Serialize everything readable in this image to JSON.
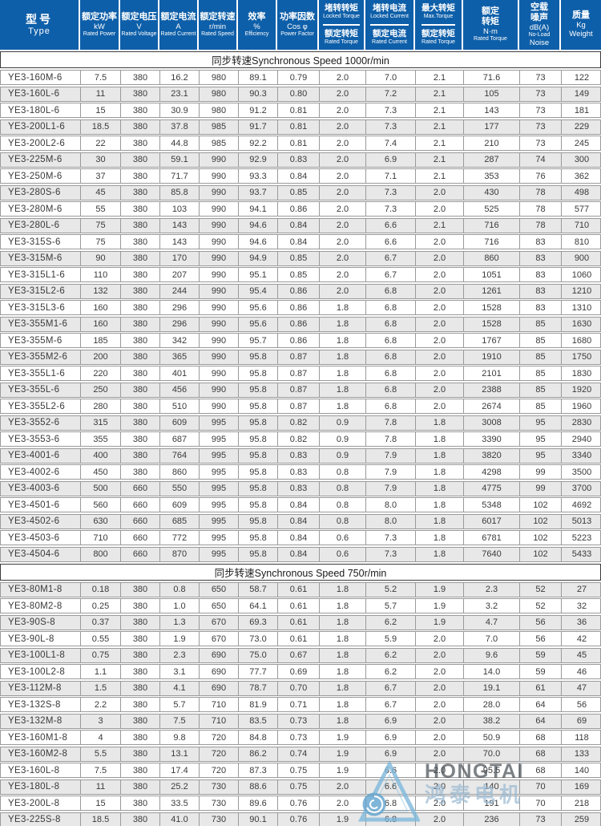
{
  "table": {
    "header": {
      "cols": [
        {
          "key": "type",
          "lines": [
            "型号",
            "Type"
          ]
        },
        {
          "key": "rated-power",
          "lines": [
            "额定功率",
            "kW",
            "Rated Power"
          ]
        },
        {
          "key": "rated-voltage",
          "lines": [
            "额定电压",
            "V",
            "Rated Voltage"
          ]
        },
        {
          "key": "rated-current",
          "lines": [
            "额定电流",
            "A",
            "Rated Current"
          ]
        },
        {
          "key": "rated-speed",
          "lines": [
            "额定转速",
            "r/min",
            "Rated Speed"
          ]
        },
        {
          "key": "efficiency",
          "lines": [
            "效率",
            "%",
            "Efficiency"
          ]
        },
        {
          "key": "power-factor",
          "lines": [
            "功率因数",
            "Cos φ",
            "Power Factor"
          ]
        },
        {
          "key": "locked-torque-ratio",
          "top": [
            "堵转转矩",
            "Locked Torque"
          ],
          "bottom": [
            "额定转矩",
            "Rated Torque"
          ]
        },
        {
          "key": "locked-current-ratio",
          "top": [
            "堵转电流",
            "Locked Current"
          ],
          "bottom": [
            "额定电流",
            "Rated Current"
          ]
        },
        {
          "key": "max-torque-ratio",
          "top": [
            "最大转矩",
            "Max.Torque"
          ],
          "bottom": [
            "额定转矩",
            "Rated Torque"
          ]
        },
        {
          "key": "rated-torque",
          "lines": [
            "额定",
            "转矩",
            "N·m",
            "Rated Torque"
          ]
        },
        {
          "key": "no-load-noise",
          "lines": [
            "空载",
            "噪声",
            "dB(A)",
            "No-Load",
            "Noise"
          ]
        },
        {
          "key": "weight",
          "lines": [
            "质量",
            "Kg",
            "Weight"
          ]
        }
      ]
    },
    "sections": [
      {
        "title": "同步转速Synchronous Speed  1000r/min",
        "rows": [
          [
            "YE3-160M-6",
            "7.5",
            "380",
            "16.2",
            "980",
            "89.1",
            "0.79",
            "2.0",
            "7.0",
            "2.1",
            "71.6",
            "73",
            "122"
          ],
          [
            "YE3-160L-6",
            "11",
            "380",
            "23.1",
            "980",
            "90.3",
            "0.80",
            "2.0",
            "7.2",
            "2.1",
            "105",
            "73",
            "149"
          ],
          [
            "YE3-180L-6",
            "15",
            "380",
            "30.9",
            "980",
            "91.2",
            "0.81",
            "2.0",
            "7.3",
            "2.1",
            "143",
            "73",
            "181"
          ],
          [
            "YE3-200L1-6",
            "18.5",
            "380",
            "37.8",
            "985",
            "91.7",
            "0.81",
            "2.0",
            "7.3",
            "2.1",
            "177",
            "73",
            "229"
          ],
          [
            "YE3-200L2-6",
            "22",
            "380",
            "44.8",
            "985",
            "92.2",
            "0.81",
            "2.0",
            "7.4",
            "2.1",
            "210",
            "73",
            "245"
          ],
          [
            "YE3-225M-6",
            "30",
            "380",
            "59.1",
            "990",
            "92.9",
            "0.83",
            "2.0",
            "6.9",
            "2.1",
            "287",
            "74",
            "300"
          ],
          [
            "YE3-250M-6",
            "37",
            "380",
            "71.7",
            "990",
            "93.3",
            "0.84",
            "2.0",
            "7.1",
            "2.1",
            "353",
            "76",
            "362"
          ],
          [
            "YE3-280S-6",
            "45",
            "380",
            "85.8",
            "990",
            "93.7",
            "0.85",
            "2.0",
            "7.3",
            "2.0",
            "430",
            "78",
            "498"
          ],
          [
            "YE3-280M-6",
            "55",
            "380",
            "103",
            "990",
            "94.1",
            "0.86",
            "2.0",
            "7.3",
            "2.0",
            "525",
            "78",
            "577"
          ],
          [
            "YE3-280L-6",
            "75",
            "380",
            "143",
            "990",
            "94.6",
            "0.84",
            "2.0",
            "6.6",
            "2.1",
            "716",
            "78",
            "710"
          ],
          [
            "YE3-315S-6",
            "75",
            "380",
            "143",
            "990",
            "94.6",
            "0.84",
            "2.0",
            "6.6",
            "2.0",
            "716",
            "83",
            "810"
          ],
          [
            "YE3-315M-6",
            "90",
            "380",
            "170",
            "990",
            "94.9",
            "0.85",
            "2.0",
            "6.7",
            "2.0",
            "860",
            "83",
            "900"
          ],
          [
            "YE3-315L1-6",
            "110",
            "380",
            "207",
            "990",
            "95.1",
            "0.85",
            "2.0",
            "6.7",
            "2.0",
            "1051",
            "83",
            "1060"
          ],
          [
            "YE3-315L2-6",
            "132",
            "380",
            "244",
            "990",
            "95.4",
            "0.86",
            "2.0",
            "6.8",
            "2.0",
            "1261",
            "83",
            "1210"
          ],
          [
            "YE3-315L3-6",
            "160",
            "380",
            "296",
            "990",
            "95.6",
            "0.86",
            "1.8",
            "6.8",
            "2.0",
            "1528",
            "83",
            "1310"
          ],
          [
            "YE3-355M1-6",
            "160",
            "380",
            "296",
            "990",
            "95.6",
            "0.86",
            "1.8",
            "6.8",
            "2.0",
            "1528",
            "85",
            "1630"
          ],
          [
            "YE3-355M-6",
            "185",
            "380",
            "342",
            "990",
            "95.7",
            "0.86",
            "1.8",
            "6.8",
            "2.0",
            "1767",
            "85",
            "1680"
          ],
          [
            "YE3-355M2-6",
            "200",
            "380",
            "365",
            "990",
            "95.8",
            "0.87",
            "1.8",
            "6.8",
            "2.0",
            "1910",
            "85",
            "1750"
          ],
          [
            "YE3-355L1-6",
            "220",
            "380",
            "401",
            "990",
            "95.8",
            "0.87",
            "1.8",
            "6.8",
            "2.0",
            "2101",
            "85",
            "1830"
          ],
          [
            "YE3-355L-6",
            "250",
            "380",
            "456",
            "990",
            "95.8",
            "0.87",
            "1.8",
            "6.8",
            "2.0",
            "2388",
            "85",
            "1920"
          ],
          [
            "YE3-355L2-6",
            "280",
            "380",
            "510",
            "990",
            "95.8",
            "0.87",
            "1.8",
            "6.8",
            "2.0",
            "2674",
            "85",
            "1960"
          ],
          [
            "YE3-3552-6",
            "315",
            "380",
            "609",
            "995",
            "95.8",
            "0.82",
            "0.9",
            "7.8",
            "1.8",
            "3008",
            "95",
            "2830"
          ],
          [
            "YE3-3553-6",
            "355",
            "380",
            "687",
            "995",
            "95.8",
            "0.82",
            "0.9",
            "7.8",
            "1.8",
            "3390",
            "95",
            "2940"
          ],
          [
            "YE3-4001-6",
            "400",
            "380",
            "764",
            "995",
            "95.8",
            "0.83",
            "0.9",
            "7.9",
            "1.8",
            "3820",
            "95",
            "3340"
          ],
          [
            "YE3-4002-6",
            "450",
            "380",
            "860",
            "995",
            "95.8",
            "0.83",
            "0.8",
            "7.9",
            "1.8",
            "4298",
            "99",
            "3500"
          ],
          [
            "YE3-4003-6",
            "500",
            "660",
            "550",
            "995",
            "95.8",
            "0.83",
            "0.8",
            "7.9",
            "1.8",
            "4775",
            "99",
            "3700"
          ],
          [
            "YE3-4501-6",
            "560",
            "660",
            "609",
            "995",
            "95.8",
            "0.84",
            "0.8",
            "8.0",
            "1.8",
            "5348",
            "102",
            "4692"
          ],
          [
            "YE3-4502-6",
            "630",
            "660",
            "685",
            "995",
            "95.8",
            "0.84",
            "0.8",
            "8.0",
            "1.8",
            "6017",
            "102",
            "5013"
          ],
          [
            "YE3-4503-6",
            "710",
            "660",
            "772",
            "995",
            "95.8",
            "0.84",
            "0.6",
            "7.3",
            "1.8",
            "6781",
            "102",
            "5223"
          ],
          [
            "YE3-4504-6",
            "800",
            "660",
            "870",
            "995",
            "95.8",
            "0.84",
            "0.6",
            "7.3",
            "1.8",
            "7640",
            "102",
            "5433"
          ]
        ]
      },
      {
        "title": "同步转速Synchronous Speed  750r/min",
        "rows": [
          [
            "YE3-80M1-8",
            "0.18",
            "380",
            "0.8",
            "650",
            "58.7",
            "0.61",
            "1.8",
            "5.2",
            "1.9",
            "2.3",
            "52",
            "27"
          ],
          [
            "YE3-80M2-8",
            "0.25",
            "380",
            "1.0",
            "650",
            "64.1",
            "0.61",
            "1.8",
            "5.7",
            "1.9",
            "3.2",
            "52",
            "32"
          ],
          [
            "YE3-90S-8",
            "0.37",
            "380",
            "1.3",
            "670",
            "69.3",
            "0.61",
            "1.8",
            "6.2",
            "1.9",
            "4.7",
            "56",
            "36"
          ],
          [
            "YE3-90L-8",
            "0.55",
            "380",
            "1.9",
            "670",
            "73.0",
            "0.61",
            "1.8",
            "5.9",
            "2.0",
            "7.0",
            "56",
            "42"
          ],
          [
            "YE3-100L1-8",
            "0.75",
            "380",
            "2.3",
            "690",
            "75.0",
            "0.67",
            "1.8",
            "6.2",
            "2.0",
            "9.6",
            "59",
            "45"
          ],
          [
            "YE3-100L2-8",
            "1.1",
            "380",
            "3.1",
            "690",
            "77.7",
            "0.69",
            "1.8",
            "6.2",
            "2.0",
            "14.0",
            "59",
            "46"
          ],
          [
            "YE3-112M-8",
            "1.5",
            "380",
            "4.1",
            "690",
            "78.7",
            "0.70",
            "1.8",
            "6.7",
            "2.0",
            "19.1",
            "61",
            "47"
          ],
          [
            "YE3-132S-8",
            "2.2",
            "380",
            "5.7",
            "710",
            "81.9",
            "0.71",
            "1.8",
            "6.7",
            "2.0",
            "28.0",
            "64",
            "56"
          ],
          [
            "YE3-132M-8",
            "3",
            "380",
            "7.5",
            "710",
            "83.5",
            "0.73",
            "1.8",
            "6.9",
            "2.0",
            "38.2",
            "64",
            "69"
          ],
          [
            "YE3-160M1-8",
            "4",
            "380",
            "9.8",
            "720",
            "84.8",
            "0.73",
            "1.9",
            "6.9",
            "2.0",
            "50.9",
            "68",
            "118"
          ],
          [
            "YE3-160M2-8",
            "5.5",
            "380",
            "13.1",
            "720",
            "86.2",
            "0.74",
            "1.9",
            "6.9",
            "2.0",
            "70.0",
            "68",
            "133"
          ],
          [
            "YE3-160L-8",
            "7.5",
            "380",
            "17.4",
            "720",
            "87.3",
            "0.75",
            "1.9",
            "6.6",
            "2.0",
            "95.5",
            "68",
            "140"
          ],
          [
            "YE3-180L-8",
            "11",
            "380",
            "25.2",
            "730",
            "88.6",
            "0.75",
            "2.0",
            "6.6",
            "2.0",
            "140",
            "70",
            "169"
          ],
          [
            "YE3-200L-8",
            "15",
            "380",
            "33.5",
            "730",
            "89.6",
            "0.76",
            "2.0",
            "6.8",
            "2.0",
            "191",
            "70",
            "218"
          ],
          [
            "YE3-225S-8",
            "18.5",
            "380",
            "41.0",
            "730",
            "90.1",
            "0.76",
            "1.9",
            "6.8",
            "2.0",
            "236",
            "73",
            "259"
          ]
        ]
      }
    ]
  },
  "watermark": {
    "brand_en": "HONGTAI",
    "brand_zh": "鸿泰电机"
  },
  "colors": {
    "header_bg": "#0e5fa9",
    "header_text": "#ffffff",
    "row_alt": "#e8e8e8",
    "row_border": "#9a9a9a",
    "section_border": "#3c3c3c",
    "watermark_blue": "#7fb9dc",
    "watermark_gray": "#3e464e"
  }
}
